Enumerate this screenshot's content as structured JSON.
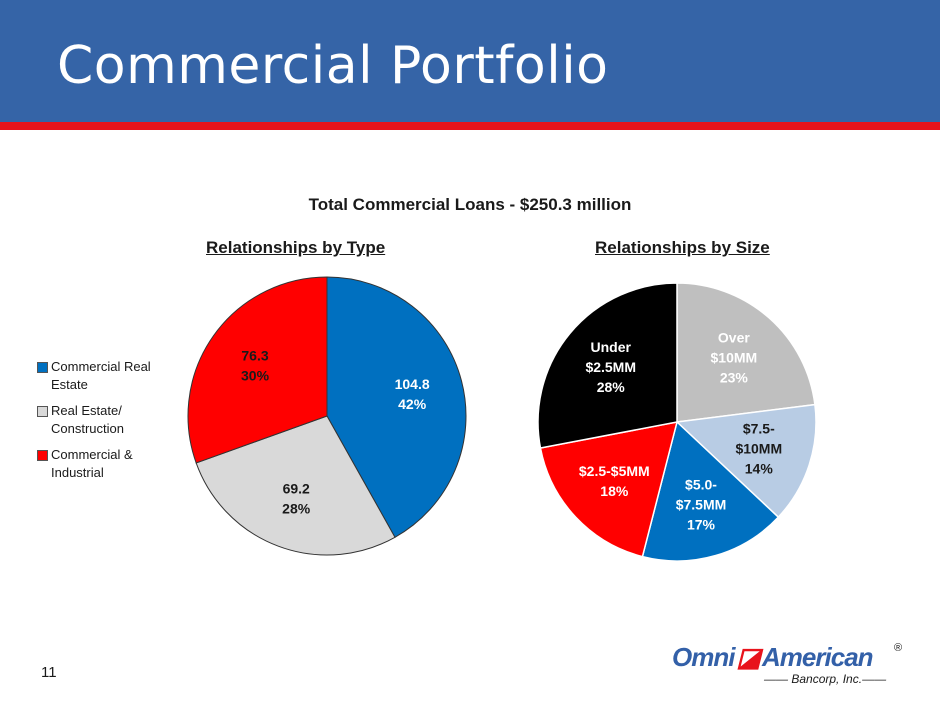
{
  "slide": {
    "title": "Commercial Portfolio",
    "page_number": "11"
  },
  "logo": {
    "text": "OmniAmerican",
    "subtitle": "Bancorp, Inc.",
    "registered": "®",
    "colors": {
      "blue": "#3360a8",
      "red": "#e8131b"
    }
  },
  "colors": {
    "header": "#3564a7",
    "accent_rule": "#e8131b"
  },
  "chart_data": [
    {
      "type": "pie",
      "title": "Total Commercial Loans - $250.3 million",
      "subtitle": "Relationships by Type",
      "slices": [
        {
          "name": "Commercial Real Estate",
          "value": 104.8,
          "pct": "42%",
          "label_value": "104.8",
          "color": "#0070c0",
          "label_color": "#ffffff"
        },
        {
          "name": "Real Estate/ Construction",
          "value": 69.2,
          "pct": "28%",
          "label_value": "69.2",
          "color": "#d9d9d9",
          "label_color": "#1a1a1a"
        },
        {
          "name": "Commercial & Industrial",
          "value": 76.3,
          "pct": "30%",
          "label_value": "76.3",
          "color": "#ff0000",
          "label_color": "#1a1a1a"
        }
      ],
      "legend": {
        "position": "left",
        "items": [
          "Commercial Real Estate",
          "Real Estate/ Construction",
          "Commercial & Industrial"
        ]
      }
    },
    {
      "type": "pie",
      "subtitle": "Relationships by Size",
      "slices": [
        {
          "name": "Over $10MM",
          "lines": [
            "Over",
            "$10MM",
            "23%"
          ],
          "value": 23,
          "color": "#bfbfbf",
          "label_color": "#ffffff"
        },
        {
          "name": "$7.5-$10MM",
          "lines": [
            "$7.5-",
            "$10MM",
            "14%"
          ],
          "value": 14,
          "color": "#b8cce4",
          "label_color": "#1a1a1a"
        },
        {
          "name": "$5.0-$7.5MM",
          "lines": [
            "$5.0-",
            "$7.5MM",
            "17%"
          ],
          "value": 17,
          "color": "#0070c0",
          "label_color": "#ffffff"
        },
        {
          "name": "$2.5-$5MM",
          "lines": [
            "$2.5-$5MM",
            "18%"
          ],
          "value": 18,
          "color": "#ff0000",
          "label_color": "#ffffff"
        },
        {
          "name": "Under $2.5MM",
          "lines": [
            "Under",
            "$2.5MM",
            "28%"
          ],
          "value": 28,
          "color": "#000000",
          "label_color": "#ffffff"
        }
      ]
    }
  ]
}
